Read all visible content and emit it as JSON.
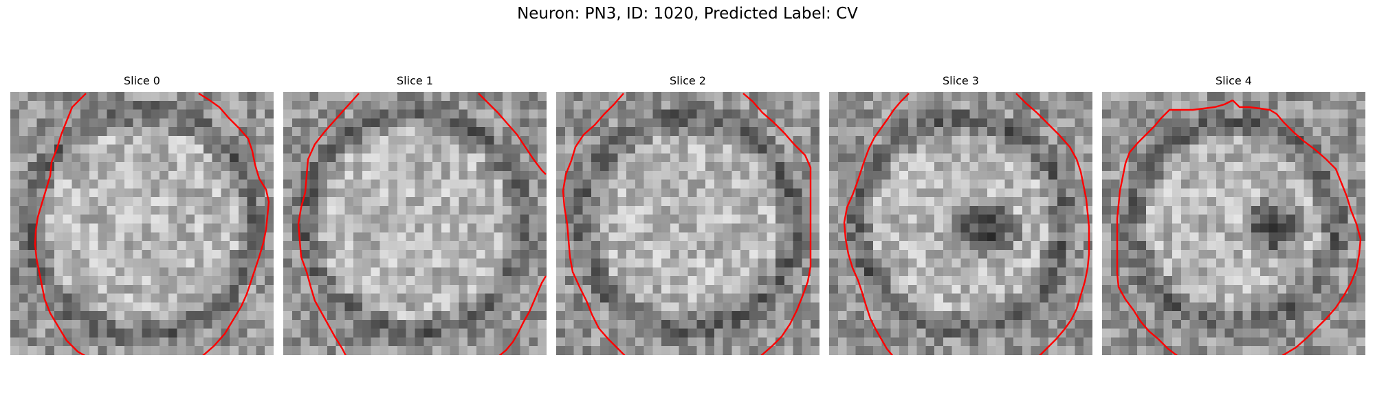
{
  "figure": {
    "title": "Neuron: PN3, ID: 1020, Predicted Label: CV",
    "contour_color": "#ff0000",
    "colormap": "gray",
    "panels": [
      {
        "title": "Slice 0"
      },
      {
        "title": "Slice 1"
      },
      {
        "title": "Slice 2"
      },
      {
        "title": "Slice 3"
      },
      {
        "title": "Slice 4"
      }
    ]
  }
}
